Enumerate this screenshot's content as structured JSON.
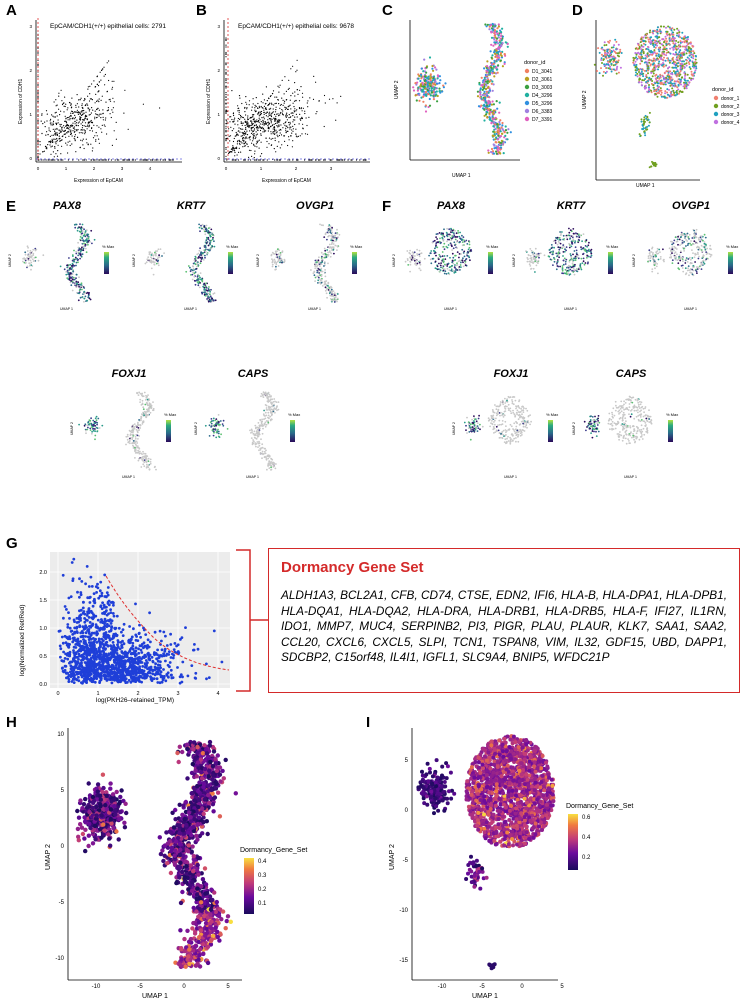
{
  "panels": [
    "A",
    "B",
    "C",
    "D",
    "E",
    "F",
    "G",
    "H",
    "I"
  ],
  "panel_a": {
    "title": "EpCAM/CDH1(+/+) epithelial cells: 2791",
    "xlabel": "Expression of EpCAM",
    "ylabel": "Expression of CDH1",
    "xticks": [
      "0",
      "1",
      "2",
      "3",
      "4"
    ],
    "yticks": [
      "0",
      "1",
      "2",
      "3"
    ]
  },
  "panel_b": {
    "title": "EpCAM/CDH1(+/+) epithelial cells: 9678",
    "xlabel": "Expression of EpCAM",
    "ylabel": "Expression of CDH1",
    "xticks": [
      "0",
      "1",
      "2",
      "3"
    ],
    "yticks": [
      "0",
      "1",
      "2",
      "3"
    ]
  },
  "panel_c": {
    "xlabel": "UMAP 1",
    "ylabel": "UMAP 2",
    "legend_title": "donor_id",
    "legend": [
      {
        "label": "D1_3041",
        "color": "#f08060"
      },
      {
        "label": "D2_3061",
        "color": "#b8a020"
      },
      {
        "label": "D3_3003",
        "color": "#3aa040"
      },
      {
        "label": "D4_3296",
        "color": "#20b0a0"
      },
      {
        "label": "D5_3296",
        "color": "#3090e0"
      },
      {
        "label": "D6_3383",
        "color": "#a080e0"
      },
      {
        "label": "D7_3391",
        "color": "#e060c0"
      }
    ]
  },
  "panel_d": {
    "xlabel": "UMAP 1",
    "ylabel": "UMAP 2",
    "legend_title": "donor_id",
    "legend": [
      {
        "label": "donor_1",
        "color": "#f08070"
      },
      {
        "label": "donor_2",
        "color": "#70a020"
      },
      {
        "label": "donor_3",
        "color": "#20a0c0"
      },
      {
        "label": "donor_4",
        "color": "#c070e0"
      }
    ]
  },
  "panel_e": {
    "genes": [
      "PAX8",
      "KRT7",
      "OVGP1",
      "FOXJ1",
      "CAPS"
    ],
    "legend_title": "% Max",
    "xlabel": "UMAP 1",
    "ylabel": "UMAP 2"
  },
  "panel_f": {
    "genes": [
      "PAX8",
      "KRT7",
      "OVGP1",
      "FOXJ1",
      "CAPS"
    ],
    "legend_title": "% Max",
    "xlabel": "UMAP 1",
    "ylabel": "UMAP 2"
  },
  "panel_g": {
    "xlabel": "log(PKH26–retained_TPM)",
    "ylabel": "log(Normalized Ret/Red)",
    "xticks": [
      "0",
      "1",
      "2",
      "3",
      "4"
    ],
    "yticks": [
      "0.0",
      "0.5",
      "1.0",
      "1.5",
      "2.0"
    ]
  },
  "dormancy": {
    "title": "Dormancy Gene Set",
    "genes": "ALDH1A3, BCL2A1, CFB, CD74, CTSE, EDN2, IFI6, HLA-B, HLA-DPA1, HLA-DPB1, HLA-DQA1, HLA-DQA2, HLA-DRA, HLA-DRB1, HLA-DRB5, HLA-F, IFI27, IL1RN, IDO1, MMP7, MUC4, SERPINB2, PI3, PIGR, PLAU, PLAUR, KLK7, SAA1, SAA2, CCL20, CXCL6, CXCL5, SLPI, TCN1, TSPAN8, VIM, IL32, GDF15, UBD, DAPP1, SDCBP2, C15orf48, IL4I1, IGFL1, SLC9A4, BNIP5, WFDC21P"
  },
  "panel_h": {
    "xlabel": "UMAP 1",
    "ylabel": "UMAP 2",
    "legend_title": "Dormancy_Gene_Set",
    "legend_ticks": [
      "0.4",
      "0.3",
      "0.2",
      "0.1"
    ],
    "xticks": [
      "-10",
      "-5",
      "0",
      "5"
    ],
    "yticks": [
      "10",
      "5",
      "0",
      "-5",
      "-10"
    ]
  },
  "panel_i": {
    "xlabel": "UMAP 1",
    "ylabel": "UMAP 2",
    "legend_title": "Dormancy_Gene_Set",
    "legend_ticks": [
      "0.6",
      "0.4",
      "0.2"
    ],
    "xticks": [
      "-10",
      "-5",
      "0",
      "5"
    ],
    "yticks": [
      "5",
      "0",
      "-5",
      "-10",
      "-15"
    ]
  }
}
